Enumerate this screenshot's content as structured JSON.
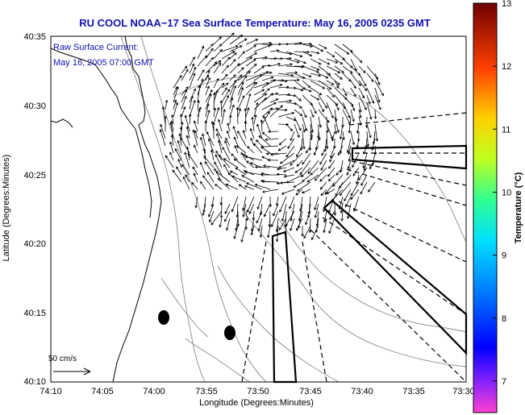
{
  "title": "RU COOL  NOAA−17  Sea Surface Temperature:  May 16, 2005 0235 GMT",
  "overlay": {
    "line1": "Raw Surface Current:",
    "line2": "May 16, 2005 07:00 GMT"
  },
  "axes": {
    "xlabel": "Longitude (Degrees:Minutes)",
    "ylabel": "Latitude (Degrees:Minutes)",
    "xticks": [
      "74:10",
      "74:05",
      "74:00",
      "73:55",
      "73:50",
      "73:45",
      "73:40",
      "73:35",
      "73:30"
    ],
    "yticks": [
      "40:35",
      "40:30",
      "40:25",
      "40:20",
      "40:15",
      "40:10"
    ]
  },
  "colorbar": {
    "label": "Temperature (°C)",
    "ticks": [
      "13",
      "12",
      "11",
      "10",
      "9",
      "8",
      "7"
    ],
    "range": [
      6.5,
      13
    ]
  },
  "scale_arrow": {
    "label": "50 cm/s",
    "speed_cm_s": 50
  },
  "colors": {
    "title": "#1010b0",
    "land": "#ffffff",
    "coastline": "#000000",
    "contours": "#8a8a8a",
    "vectors": "#000000"
  }
}
